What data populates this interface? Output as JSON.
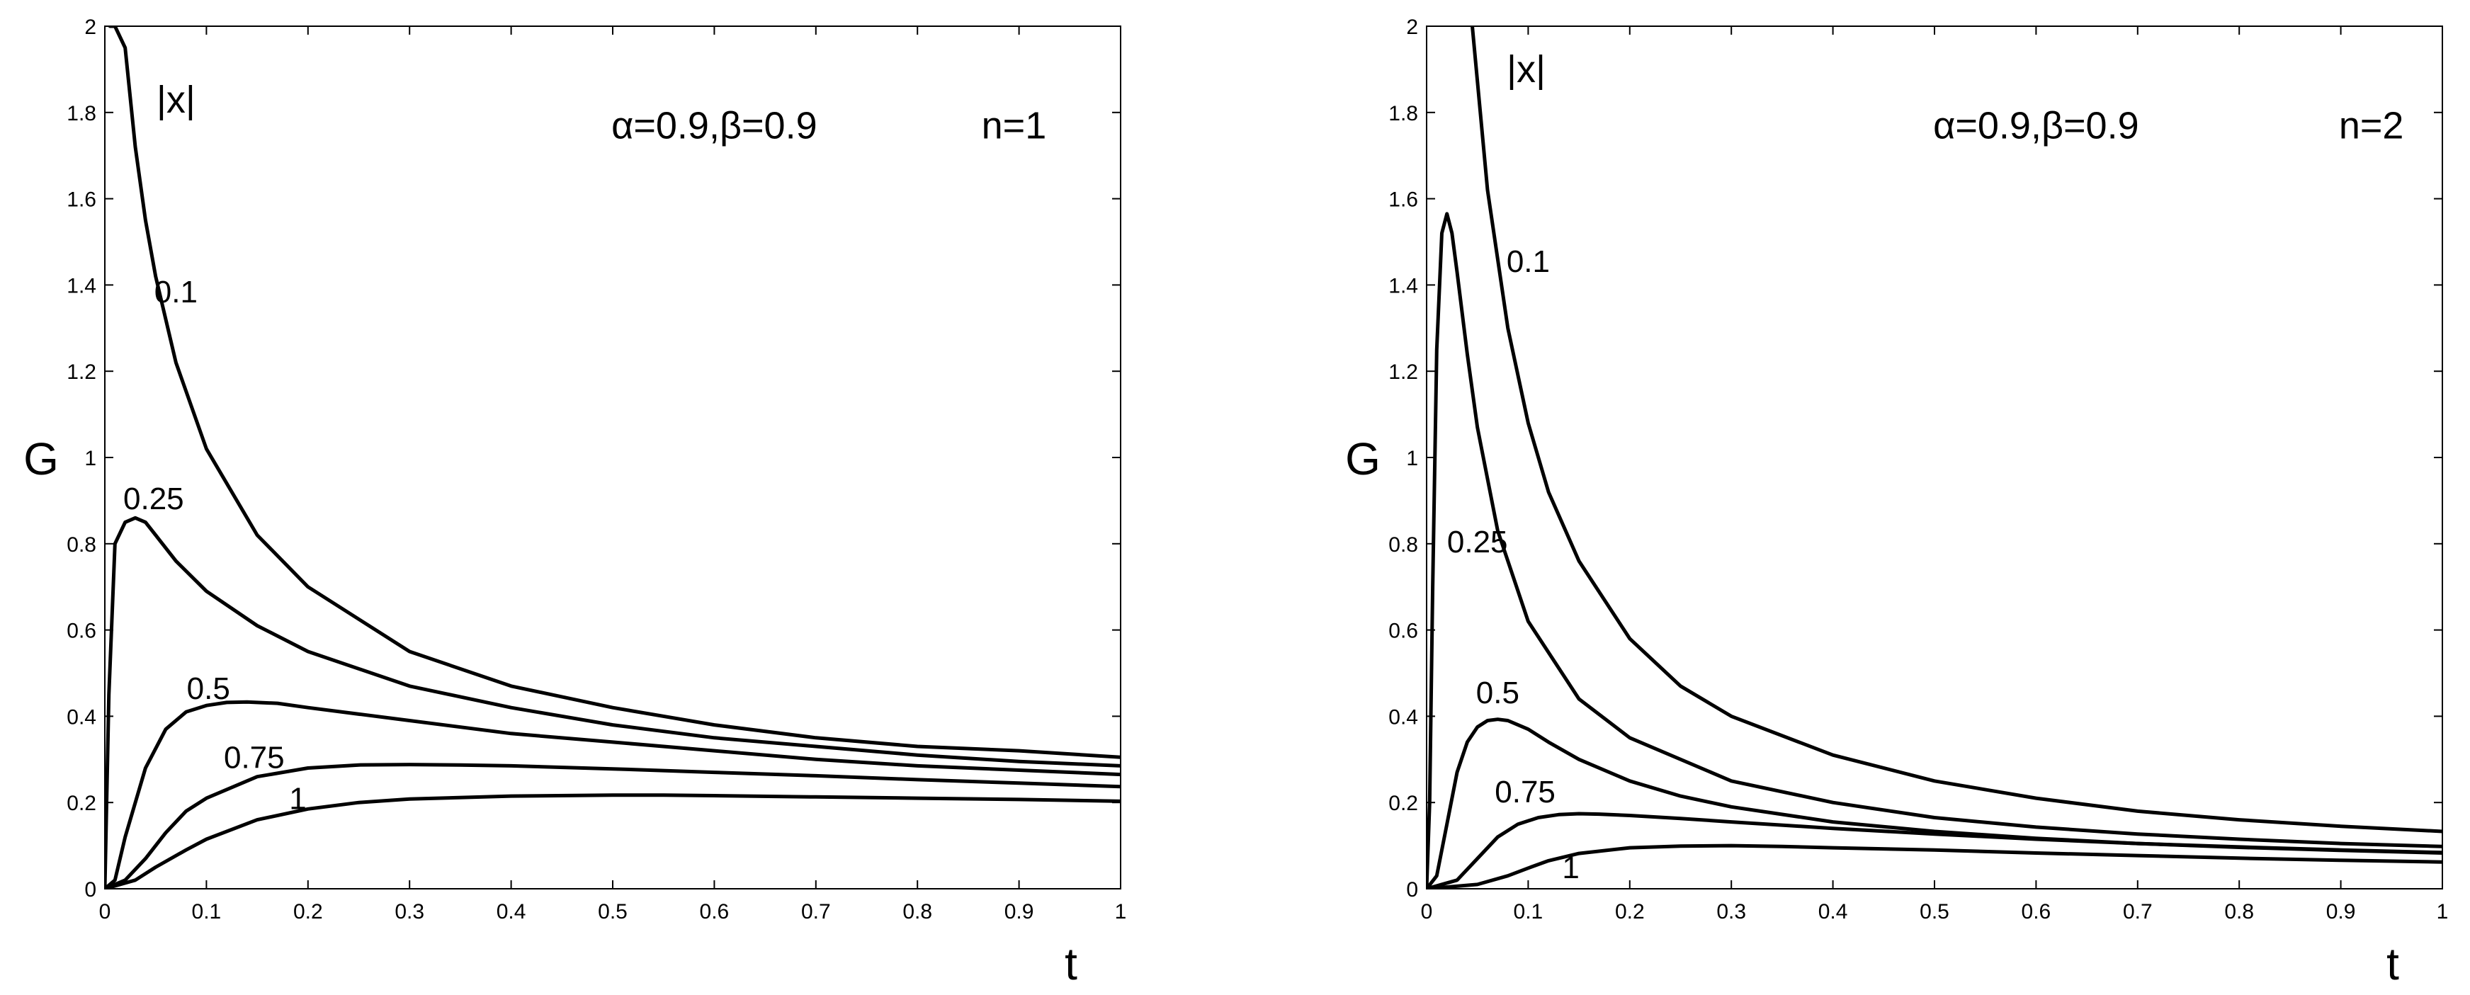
{
  "chart_data": [
    {
      "type": "line",
      "panel": "left",
      "xlabel": "t",
      "ylabel": "G",
      "xlim": [
        0,
        1
      ],
      "ylim": [
        0,
        2
      ],
      "xticks": [
        "0",
        "0.1",
        "0.2",
        "0.3",
        "0.4",
        "0.5",
        "0.6",
        "0.7",
        "0.8",
        "0.9",
        "1"
      ],
      "yticks": [
        "0",
        "0.2",
        "0.4",
        "0.6",
        "0.8",
        "1",
        "1.2",
        "1.4",
        "1.6",
        "1.8",
        "2"
      ],
      "legend_title": "|x|",
      "params_label": "α=0.9,β=0.9",
      "n_label": "n=1",
      "line_color": "#000000",
      "series": [
        {
          "name": "0.1",
          "x": [
            0.005,
            0.01,
            0.02,
            0.03,
            0.04,
            0.05,
            0.07,
            0.1,
            0.15,
            0.2,
            0.3,
            0.4,
            0.5,
            0.6,
            0.7,
            0.8,
            0.9,
            1.0
          ],
          "y": [
            2.0,
            2.0,
            1.95,
            1.72,
            1.55,
            1.42,
            1.22,
            1.02,
            0.82,
            0.7,
            0.55,
            0.47,
            0.42,
            0.38,
            0.35,
            0.33,
            0.32,
            0.305
          ]
        },
        {
          "name": "0.25",
          "x": [
            0,
            0.004,
            0.01,
            0.02,
            0.03,
            0.04,
            0.05,
            0.07,
            0.1,
            0.15,
            0.2,
            0.3,
            0.4,
            0.5,
            0.6,
            0.7,
            0.8,
            0.9,
            1.0
          ],
          "y": [
            0,
            0.45,
            0.8,
            0.85,
            0.86,
            0.85,
            0.82,
            0.76,
            0.69,
            0.61,
            0.55,
            0.47,
            0.42,
            0.38,
            0.35,
            0.33,
            0.31,
            0.295,
            0.285
          ]
        },
        {
          "name": "0.5",
          "x": [
            0,
            0.01,
            0.02,
            0.04,
            0.06,
            0.08,
            0.1,
            0.12,
            0.14,
            0.17,
            0.2,
            0.3,
            0.4,
            0.5,
            0.6,
            0.7,
            0.8,
            0.9,
            1.0
          ],
          "y": [
            0,
            0.02,
            0.12,
            0.28,
            0.37,
            0.41,
            0.425,
            0.432,
            0.433,
            0.43,
            0.42,
            0.39,
            0.36,
            0.34,
            0.32,
            0.3,
            0.285,
            0.275,
            0.265
          ]
        },
        {
          "name": "0.75",
          "x": [
            0,
            0.02,
            0.04,
            0.06,
            0.08,
            0.1,
            0.15,
            0.2,
            0.25,
            0.3,
            0.35,
            0.4,
            0.5,
            0.6,
            0.7,
            0.8,
            0.9,
            1.0
          ],
          "y": [
            0,
            0.02,
            0.07,
            0.13,
            0.18,
            0.21,
            0.26,
            0.28,
            0.287,
            0.288,
            0.287,
            0.285,
            0.278,
            0.27,
            0.262,
            0.253,
            0.245,
            0.237
          ]
        },
        {
          "name": "1",
          "x": [
            0,
            0.03,
            0.05,
            0.08,
            0.1,
            0.15,
            0.2,
            0.25,
            0.3,
            0.4,
            0.5,
            0.55,
            0.6,
            0.7,
            0.8,
            0.9,
            1.0
          ],
          "y": [
            0,
            0.02,
            0.05,
            0.09,
            0.115,
            0.16,
            0.185,
            0.2,
            0.208,
            0.215,
            0.217,
            0.217,
            0.216,
            0.213,
            0.21,
            0.207,
            0.203
          ]
        }
      ],
      "curve_labels": [
        {
          "text": "0.1",
          "x": 0.07,
          "y": 1.36
        },
        {
          "text": "0.25",
          "x": 0.048,
          "y": 0.88
        },
        {
          "text": "0.5",
          "x": 0.102,
          "y": 0.44
        },
        {
          "text": "0.75",
          "x": 0.147,
          "y": 0.28
        },
        {
          "text": "1",
          "x": 0.19,
          "y": 0.185
        }
      ],
      "legend_title_pos": {
        "x": 0.07,
        "y": 1.8
      },
      "params_pos": {
        "x": 0.6,
        "y": 1.74
      },
      "n_pos": {
        "x": 0.895,
        "y": 1.74
      }
    },
    {
      "type": "line",
      "panel": "right",
      "xlabel": "t",
      "ylabel": "G",
      "xlim": [
        0,
        1
      ],
      "ylim": [
        0,
        2
      ],
      "xticks": [
        "0",
        "0.1",
        "0.2",
        "0.3",
        "0.4",
        "0.5",
        "0.6",
        "0.7",
        "0.8",
        "0.9",
        "1"
      ],
      "yticks": [
        "0",
        "0.2",
        "0.4",
        "0.6",
        "0.8",
        "1",
        "1.2",
        "1.4",
        "1.6",
        "1.8",
        "2"
      ],
      "legend_title": "|x|",
      "params_label": "α=0.9,β=0.9",
      "n_label": "n=2",
      "line_color": "#000000",
      "series": [
        {
          "name": "0.1",
          "x": [
            0.045,
            0.06,
            0.08,
            0.1,
            0.12,
            0.15,
            0.2,
            0.25,
            0.3,
            0.4,
            0.5,
            0.6,
            0.7,
            0.8,
            0.9,
            1.0
          ],
          "y": [
            2.0,
            1.62,
            1.3,
            1.08,
            0.92,
            0.76,
            0.58,
            0.47,
            0.4,
            0.31,
            0.25,
            0.21,
            0.18,
            0.16,
            0.145,
            0.133
          ]
        },
        {
          "name": "0.25",
          "x": [
            0,
            0.003,
            0.006,
            0.01,
            0.015,
            0.02,
            0.025,
            0.03,
            0.04,
            0.05,
            0.07,
            0.1,
            0.15,
            0.2,
            0.3,
            0.4,
            0.5,
            0.6,
            0.7,
            0.8,
            0.9,
            1.0
          ],
          "y": [
            0,
            0.2,
            0.7,
            1.25,
            1.52,
            1.565,
            1.52,
            1.43,
            1.24,
            1.07,
            0.83,
            0.62,
            0.44,
            0.35,
            0.25,
            0.2,
            0.165,
            0.143,
            0.127,
            0.115,
            0.105,
            0.098
          ]
        },
        {
          "name": "0.5",
          "x": [
            0,
            0.01,
            0.02,
            0.03,
            0.04,
            0.05,
            0.06,
            0.07,
            0.08,
            0.1,
            0.12,
            0.15,
            0.2,
            0.25,
            0.3,
            0.4,
            0.5,
            0.6,
            0.7,
            0.8,
            0.9,
            1.0
          ],
          "y": [
            0,
            0.03,
            0.15,
            0.27,
            0.34,
            0.375,
            0.39,
            0.393,
            0.39,
            0.37,
            0.34,
            0.3,
            0.25,
            0.215,
            0.19,
            0.155,
            0.133,
            0.117,
            0.105,
            0.096,
            0.089,
            0.083
          ]
        },
        {
          "name": "0.75",
          "x": [
            0,
            0.03,
            0.05,
            0.07,
            0.09,
            0.11,
            0.13,
            0.15,
            0.17,
            0.2,
            0.25,
            0.3,
            0.4,
            0.5,
            0.6,
            0.7,
            0.8,
            0.9,
            1.0
          ],
          "y": [
            0,
            0.02,
            0.07,
            0.12,
            0.15,
            0.165,
            0.172,
            0.174,
            0.173,
            0.17,
            0.163,
            0.155,
            0.14,
            0.127,
            0.115,
            0.105,
            0.097,
            0.09,
            0.084
          ]
        },
        {
          "name": "1",
          "x": [
            0,
            0.05,
            0.08,
            0.1,
            0.12,
            0.15,
            0.2,
            0.25,
            0.3,
            0.35,
            0.4,
            0.5,
            0.6,
            0.7,
            0.8,
            0.9,
            1.0
          ],
          "y": [
            0,
            0.01,
            0.03,
            0.048,
            0.065,
            0.082,
            0.095,
            0.099,
            0.1,
            0.098,
            0.095,
            0.09,
            0.083,
            0.077,
            0.071,
            0.066,
            0.062
          ]
        }
      ],
      "curve_labels": [
        {
          "text": "0.1",
          "x": 0.1,
          "y": 1.43
        },
        {
          "text": "0.25",
          "x": 0.05,
          "y": 0.78
        },
        {
          "text": "0.5",
          "x": 0.07,
          "y": 0.43
        },
        {
          "text": "0.75",
          "x": 0.097,
          "y": 0.2
        },
        {
          "text": "1",
          "x": 0.142,
          "y": 0.025
        }
      ],
      "legend_title_pos": {
        "x": 0.098,
        "y": 1.87
      },
      "params_pos": {
        "x": 0.6,
        "y": 1.74
      },
      "n_pos": {
        "x": 0.93,
        "y": 1.74
      }
    }
  ]
}
